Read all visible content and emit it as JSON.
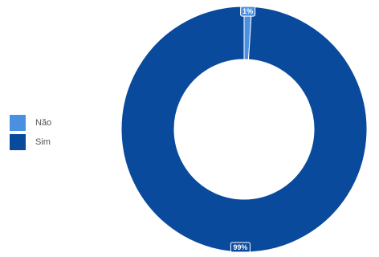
{
  "chart_data": {
    "type": "pie",
    "donut": true,
    "categories": [
      "Não",
      "Sim"
    ],
    "values": [
      1,
      99
    ],
    "data_labels": [
      "1%",
      "99%"
    ],
    "colors": [
      "#4a90e2",
      "#0a4a9c"
    ],
    "legend_position": "left",
    "title": ""
  }
}
